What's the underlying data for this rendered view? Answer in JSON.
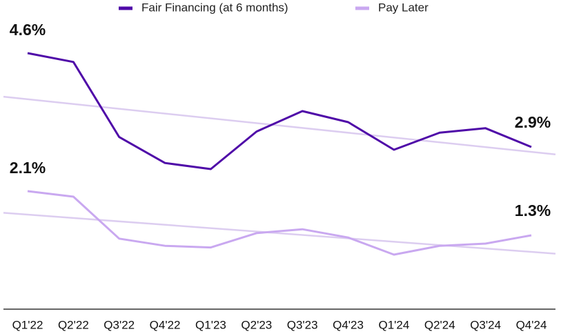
{
  "chart_data": {
    "type": "line",
    "categories": [
      "Q1'22",
      "Q2'22",
      "Q3'22",
      "Q4'22",
      "Q1'23",
      "Q2'23",
      "Q3'23",
      "Q4'23",
      "Q1'24",
      "Q2'24",
      "Q3'24",
      "Q4'24"
    ],
    "series": [
      {
        "name": "Fair Financing (at 6 months)",
        "color": "#4f0aa8",
        "values": [
          4.6,
          4.44,
          3.08,
          2.61,
          2.5,
          3.18,
          3.55,
          3.35,
          2.85,
          3.16,
          3.24,
          2.9
        ],
        "value_labels": [
          "4.6%",
          null,
          null,
          null,
          null,
          null,
          null,
          null,
          null,
          null,
          null,
          "2.9%"
        ]
      },
      {
        "name": "Pay Later",
        "color": "#c9a8f0",
        "values": [
          2.1,
          2.0,
          1.24,
          1.11,
          1.08,
          1.34,
          1.41,
          1.26,
          0.95,
          1.11,
          1.15,
          1.3
        ],
        "value_labels": [
          "2.1%",
          null,
          null,
          null,
          null,
          null,
          null,
          null,
          null,
          null,
          null,
          "1.3%"
        ]
      }
    ],
    "ylim": [
      0,
      5
    ],
    "trendline": true,
    "trend_color": "#dccdf0",
    "legend": "top"
  }
}
